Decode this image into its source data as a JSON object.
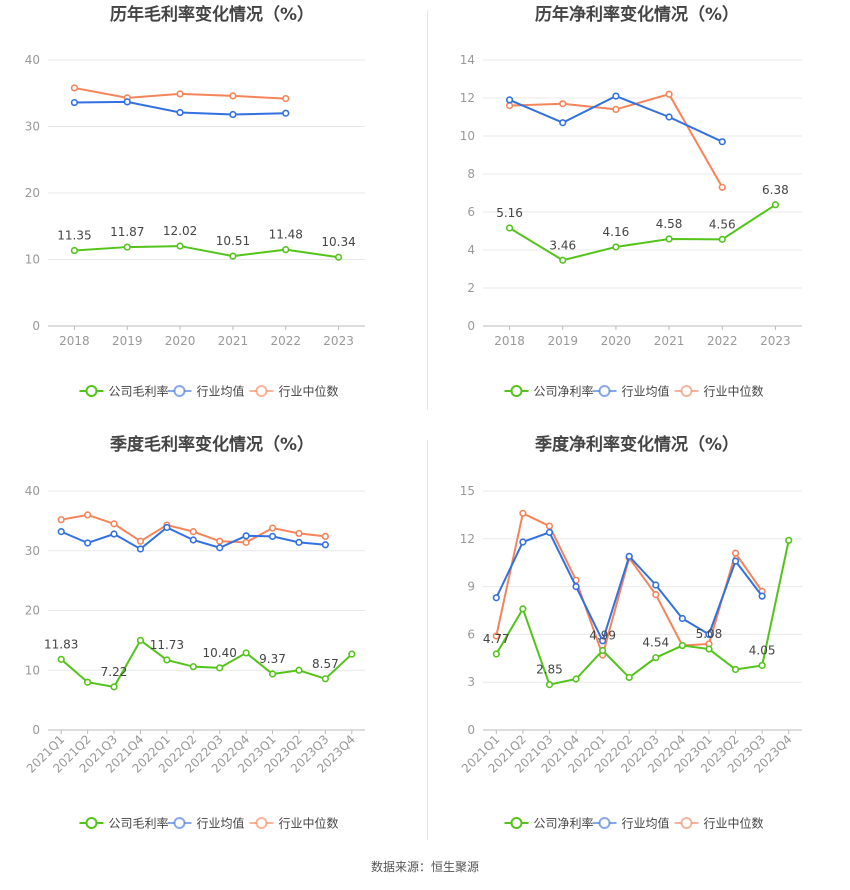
{
  "footer": "数据来源：恒生聚源",
  "colors": {
    "company": "#52c41a",
    "avg": "#3370e0",
    "median": "#f5845a"
  },
  "chart_data": [
    {
      "type": "line",
      "title": "历年毛利率变化情况（%）",
      "categories": [
        "2018",
        "2019",
        "2020",
        "2021",
        "2022",
        "2023"
      ],
      "ylim": [
        0,
        40
      ],
      "yticks": [
        0,
        10,
        20,
        30,
        40
      ],
      "series": [
        {
          "name": "公司毛利率",
          "key": "company",
          "values": [
            11.35,
            11.87,
            12.02,
            10.51,
            11.48,
            10.34
          ],
          "labels": [
            "11.35",
            "11.87",
            "12.02",
            "10.51",
            "11.48",
            "10.34"
          ]
        },
        {
          "name": "行业均值",
          "key": "avg",
          "values": [
            33.6,
            33.7,
            32.1,
            31.8,
            32.0,
            null
          ]
        },
        {
          "name": "行业中位数",
          "key": "median",
          "values": [
            35.8,
            34.3,
            34.9,
            34.6,
            34.2,
            null
          ]
        }
      ],
      "grid": true,
      "legend": "bottom"
    },
    {
      "type": "line",
      "title": "历年净利率变化情况（%）",
      "categories": [
        "2018",
        "2019",
        "2020",
        "2021",
        "2022",
        "2023"
      ],
      "ylim": [
        0,
        14
      ],
      "yticks": [
        0,
        2,
        4,
        6,
        8,
        10,
        12,
        14
      ],
      "series": [
        {
          "name": "公司净利率",
          "key": "company",
          "values": [
            5.16,
            3.46,
            4.16,
            4.58,
            4.56,
            6.38
          ],
          "labels": [
            "5.16",
            "3.46",
            "4.16",
            "4.58",
            "4.56",
            "6.38"
          ]
        },
        {
          "name": "行业均值",
          "key": "avg",
          "values": [
            11.9,
            10.7,
            12.1,
            11.0,
            9.7,
            null
          ]
        },
        {
          "name": "行业中位数",
          "key": "median",
          "values": [
            11.6,
            11.7,
            11.4,
            12.2,
            7.3,
            null
          ]
        }
      ],
      "grid": true,
      "legend": "bottom"
    },
    {
      "type": "line",
      "title": "季度毛利率变化情况（%）",
      "categories": [
        "2021Q1",
        "2021Q2",
        "2021Q3",
        "2021Q4",
        "2022Q1",
        "2022Q2",
        "2022Q3",
        "2022Q4",
        "2023Q1",
        "2023Q2",
        "2023Q3",
        "2023Q4"
      ],
      "ylim": [
        0,
        40
      ],
      "yticks": [
        0,
        10,
        20,
        30,
        40
      ],
      "series": [
        {
          "name": "公司毛利率",
          "key": "company",
          "values": [
            11.83,
            8.0,
            7.22,
            15.0,
            11.73,
            10.6,
            10.4,
            12.9,
            9.37,
            10.0,
            8.57,
            12.7
          ],
          "labels": [
            "11.83",
            "",
            "7.22",
            "",
            "11.73",
            "",
            "10.40",
            "",
            "9.37",
            "",
            "8.57",
            ""
          ]
        },
        {
          "name": "行业均值",
          "key": "avg",
          "values": [
            33.2,
            31.3,
            32.8,
            30.3,
            33.9,
            31.8,
            30.5,
            32.5,
            32.4,
            31.4,
            31.0,
            null
          ]
        },
        {
          "name": "行业中位数",
          "key": "median",
          "values": [
            35.2,
            36.0,
            34.5,
            31.6,
            34.3,
            33.2,
            31.6,
            31.4,
            33.8,
            32.9,
            32.4,
            null
          ]
        }
      ],
      "grid": true,
      "legend": "bottom"
    },
    {
      "type": "line",
      "title": "季度净利率变化情况（%）",
      "categories": [
        "2021Q1",
        "2021Q2",
        "2021Q3",
        "2021Q4",
        "2022Q1",
        "2022Q2",
        "2022Q3",
        "2022Q4",
        "2023Q1",
        "2023Q2",
        "2023Q3",
        "2023Q4"
      ],
      "ylim": [
        0,
        15
      ],
      "yticks": [
        0,
        3,
        6,
        9,
        12,
        15
      ],
      "series": [
        {
          "name": "公司净利率",
          "key": "company",
          "values": [
            4.77,
            7.6,
            2.85,
            3.2,
            4.99,
            3.3,
            4.54,
            5.3,
            5.08,
            3.8,
            4.05,
            11.9
          ],
          "labels": [
            "4.77",
            "",
            "2.85",
            "",
            "4.99",
            "",
            "4.54",
            "",
            "5.08",
            "",
            "4.05",
            ""
          ]
        },
        {
          "name": "行业均值",
          "key": "avg",
          "values": [
            8.3,
            11.8,
            12.4,
            9.0,
            5.6,
            10.9,
            9.1,
            7.0,
            6.0,
            10.6,
            8.4,
            null
          ]
        },
        {
          "name": "行业中位数",
          "key": "median",
          "values": [
            5.9,
            13.6,
            12.8,
            9.4,
            4.7,
            10.8,
            8.5,
            5.3,
            5.4,
            11.1,
            8.7,
            null
          ]
        }
      ],
      "grid": true,
      "legend": "bottom"
    }
  ]
}
